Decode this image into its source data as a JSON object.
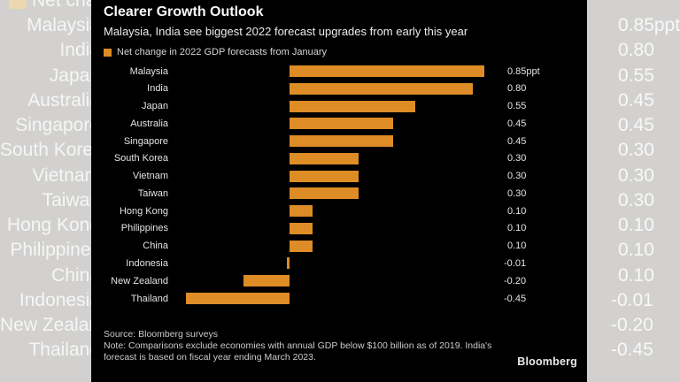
{
  "panel": {
    "title": "Clearer Growth Outlook",
    "subtitle": "Malaysia, India see biggest 2022 forecast upgrades from early this year",
    "legend_label": "Net change in 2022 GDP forecasts from January",
    "source": "Source: Bloomberg surveys",
    "note": "Note: Comparisons exclude economies with annual GDP below $100 billion as of 2019. India's forecast is based on fiscal year ending March 2023.",
    "logo": "Bloomberg"
  },
  "background": {
    "legend_label": "Net change in 2022 GDP forecasts from January"
  },
  "colors": {
    "bar": "#de8c26",
    "panel_bg": "#000000",
    "page_bg": "#d2d1cf",
    "bg_legend_swatch": "#ecd7b0"
  },
  "chart_data": {
    "type": "bar",
    "orientation": "horizontal",
    "title": "Clearer Growth Outlook",
    "subtitle": "Malaysia, India see biggest 2022 forecast upgrades from early this year",
    "series_label": "Net change in 2022 GDP forecasts from January",
    "unit": "ppt",
    "categories": [
      "Malaysia",
      "India",
      "Japan",
      "Australia",
      "Singapore",
      "South Korea",
      "Vietnam",
      "Taiwan",
      "Hong Kong",
      "Philippines",
      "China",
      "Indonesia",
      "New Zealand",
      "Thailand"
    ],
    "values": [
      0.85,
      0.8,
      0.55,
      0.45,
      0.45,
      0.3,
      0.3,
      0.3,
      0.1,
      0.1,
      0.1,
      -0.01,
      -0.2,
      -0.45
    ],
    "value_labels": [
      "0.85ppt",
      "0.80",
      "0.55",
      "0.45",
      "0.45",
      "0.30",
      "0.30",
      "0.30",
      "0.10",
      "0.10",
      "0.10",
      "-0.01",
      "-0.20",
      "-0.45"
    ],
    "xlim": [
      -0.5,
      0.9
    ],
    "grid": false,
    "legend_position": "top-left",
    "bar_color": "#de8c26",
    "source": "Source: Bloomberg surveys",
    "note": "Note: Comparisons exclude economies with annual GDP below $100 billion as of 2019. India's forecast is based on fiscal year ending March 2023."
  }
}
